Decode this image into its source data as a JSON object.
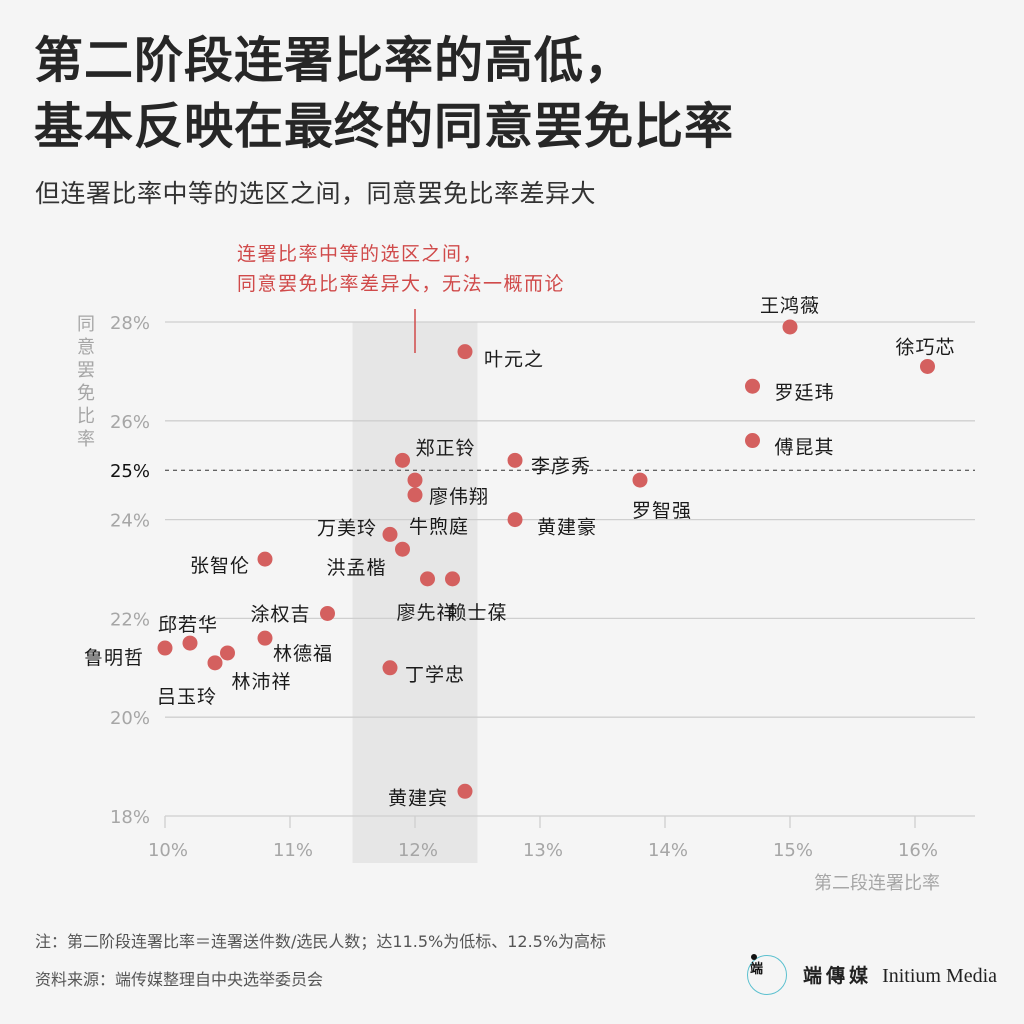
{
  "header": {
    "title_line1": "第二阶段连署比率的高低，",
    "title_line2": "基本反映在最终的同意罢免比率",
    "subtitle": "但连署比率中等的选区之间，同意罢免比率差异大"
  },
  "colors": {
    "point": "#d4605f",
    "annotation": "#d04a4a",
    "band": "#e6e6e6",
    "grid": "#cfcfcf",
    "tick_label": "#a6a6a6",
    "logo_ring": "#5bc0cf"
  },
  "chart_data": {
    "type": "scatter",
    "title": "第二阶段连署比率的高低，基本反映在最终的同意罢免比率",
    "xlabel": "第二段连署比率",
    "ylabel": "同意罢免比率",
    "xlim": [
      10,
      16.5
    ],
    "ylim": [
      18,
      28
    ],
    "x_ticks": [
      10,
      11,
      12,
      13,
      14,
      15,
      16
    ],
    "x_tick_labels": [
      "10%",
      "11%",
      "12%",
      "13%",
      "14%",
      "15%",
      "16%"
    ],
    "y_ticks": [
      18,
      20,
      22,
      24,
      26,
      28
    ],
    "y_tick_labels": [
      "18%",
      "20%",
      "22%",
      "24%",
      "26%",
      "28%"
    ],
    "grid": true,
    "reference_line": {
      "y": 25,
      "label": "25%",
      "style": "dashed"
    },
    "highlight_band": {
      "x_from": 11.5,
      "x_to": 12.5
    },
    "annotation": {
      "line1": "连署比率中等的选区之间，",
      "line2": "同意罢免比率差异大，无法一概而论",
      "x": 12.0
    },
    "points": [
      {
        "name": "王鸿薇",
        "x": 15.0,
        "y": 27.9
      },
      {
        "name": "徐巧芯",
        "x": 16.1,
        "y": 27.1
      },
      {
        "name": "叶元之",
        "x": 12.4,
        "y": 27.4
      },
      {
        "name": "罗廷玮",
        "x": 14.7,
        "y": 26.7
      },
      {
        "name": "傅昆其",
        "x": 14.7,
        "y": 25.6
      },
      {
        "name": "郑正铃",
        "x": 11.9,
        "y": 25.2
      },
      {
        "name": "李彦秀",
        "x": 12.8,
        "y": 25.2
      },
      {
        "name": "罗智强",
        "x": 13.8,
        "y": 24.8
      },
      {
        "name": "牛煦庭",
        "x": 12.0,
        "y": 24.8
      },
      {
        "name": "廖伟翔",
        "x": 12.0,
        "y": 24.5
      },
      {
        "name": "黄建豪",
        "x": 12.8,
        "y": 24.0
      },
      {
        "name": "万美玲",
        "x": 11.8,
        "y": 23.7
      },
      {
        "name": "洪孟楷",
        "x": 11.9,
        "y": 23.4
      },
      {
        "name": "张智伦",
        "x": 10.8,
        "y": 23.2
      },
      {
        "name": "廖先祥",
        "x": 12.1,
        "y": 22.8
      },
      {
        "name": "赖士葆",
        "x": 12.3,
        "y": 22.8
      },
      {
        "name": "涂权吉",
        "x": 11.3,
        "y": 22.1
      },
      {
        "name": "林德福",
        "x": 10.8,
        "y": 21.6
      },
      {
        "name": "邱若华",
        "x": 10.2,
        "y": 21.5
      },
      {
        "name": "鲁明哲",
        "x": 10.0,
        "y": 21.4
      },
      {
        "name": "林沛祥",
        "x": 10.5,
        "y": 21.3
      },
      {
        "name": "吕玉玲",
        "x": 10.4,
        "y": 21.1
      },
      {
        "name": "丁学忠",
        "x": 11.8,
        "y": 21.0
      },
      {
        "name": "黄建宾",
        "x": 12.4,
        "y": 18.5
      }
    ]
  },
  "footer": {
    "note": "注：第二阶段连署比率＝连署送件数/选民人数；达11.5%为低标、12.5%为高标",
    "source": "资料来源：端传媒整理自中央选举委员会",
    "logo_glyph": "端",
    "logo_cn": "端傳媒",
    "logo_en": "Initium Media"
  }
}
